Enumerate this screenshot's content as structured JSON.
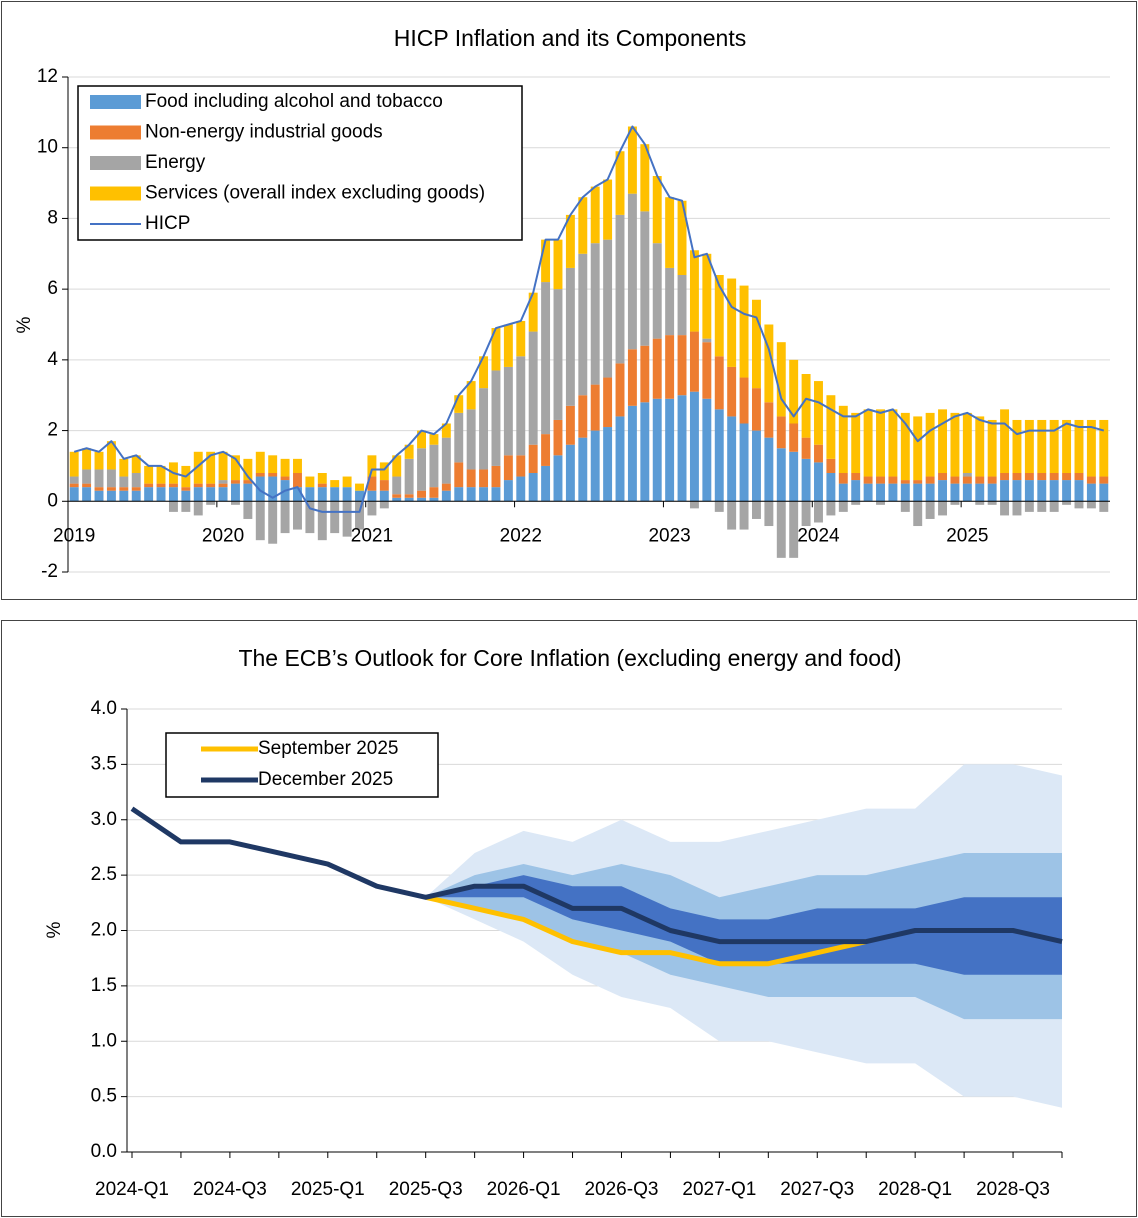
{
  "chart_data": [
    {
      "type": "bar",
      "stacked": true,
      "title": "HICP Inflation and its Components",
      "y_label": "%",
      "legend": "upper left",
      "grid": true,
      "categories": [
        "2019",
        null,
        null,
        null,
        null,
        null,
        null,
        null,
        null,
        null,
        null,
        null,
        "2020",
        null,
        null,
        null,
        null,
        null,
        null,
        null,
        null,
        null,
        null,
        null,
        "2021",
        null,
        null,
        null,
        null,
        null,
        null,
        null,
        null,
        null,
        null,
        null,
        "2022",
        null,
        null,
        null,
        null,
        null,
        null,
        null,
        null,
        null,
        null,
        null,
        "2023",
        null,
        null,
        null,
        null,
        null,
        null,
        null,
        null,
        null,
        null,
        null,
        "2024",
        null,
        null,
        null,
        null,
        null,
        null,
        null,
        null,
        null,
        null,
        null,
        "2025",
        null,
        null,
        null,
        null,
        null,
        null,
        null,
        null,
        null,
        null,
        null
      ],
      "ylim": [
        -2,
        12
      ],
      "yticks": [
        -2,
        0,
        2,
        4,
        6,
        8,
        10,
        12
      ],
      "series": [
        {
          "name": "Food including alcohol and tobacco",
          "color": "#5b9bd5",
          "values": [
            0.4,
            0.4,
            0.3,
            0.3,
            0.3,
            0.3,
            0.4,
            0.4,
            0.4,
            0.3,
            0.4,
            0.4,
            0.4,
            0.5,
            0.5,
            0.7,
            0.7,
            0.6,
            0.4,
            0.4,
            0.4,
            0.4,
            0.4,
            0.3,
            0.3,
            0.3,
            0.1,
            0.1,
            0.1,
            0.1,
            0.3,
            0.4,
            0.4,
            0.4,
            0.4,
            0.6,
            0.7,
            0.8,
            1.0,
            1.3,
            1.6,
            1.8,
            2.0,
            2.1,
            2.4,
            2.7,
            2.8,
            2.9,
            2.9,
            3.0,
            3.1,
            2.9,
            2.6,
            2.4,
            2.2,
            2.0,
            1.8,
            1.5,
            1.4,
            1.2,
            1.1,
            0.8,
            0.5,
            0.6,
            0.5,
            0.5,
            0.5,
            0.5,
            0.5,
            0.5,
            0.6,
            0.5,
            0.5,
            0.5,
            0.5,
            0.6,
            0.6,
            0.6,
            0.6,
            0.6,
            0.6,
            0.6,
            0.5,
            0.5
          ]
        },
        {
          "name": "Non-energy industrial goods",
          "color": "#ed7d31",
          "values": [
            0.1,
            0.1,
            0.1,
            0.1,
            0.1,
            0.1,
            0.1,
            0.1,
            0.1,
            0.1,
            0.1,
            0.1,
            0.1,
            0.1,
            0.1,
            0.1,
            0.1,
            0.1,
            0.4,
            0.0,
            0.1,
            0.0,
            0.0,
            0.0,
            0.4,
            0.3,
            0.1,
            0.1,
            0.2,
            0.3,
            0.2,
            0.7,
            0.5,
            0.5,
            0.6,
            0.7,
            0.6,
            0.8,
            0.9,
            1.0,
            1.1,
            1.2,
            1.3,
            1.4,
            1.5,
            1.6,
            1.6,
            1.7,
            1.8,
            1.7,
            1.7,
            1.6,
            1.5,
            1.4,
            1.3,
            1.2,
            1.0,
            0.9,
            0.8,
            0.6,
            0.5,
            0.4,
            0.3,
            0.2,
            0.2,
            0.2,
            0.2,
            0.1,
            0.1,
            0.2,
            0.2,
            0.2,
            0.2,
            0.2,
            0.2,
            0.2,
            0.2,
            0.2,
            0.2,
            0.2,
            0.2,
            0.2,
            0.2,
            0.2
          ]
        },
        {
          "name": "Energy",
          "color": "#a5a5a5",
          "values": [
            0.2,
            0.4,
            0.5,
            0.5,
            0.3,
            0.4,
            0.0,
            0.0,
            -0.3,
            -0.3,
            -0.4,
            -0.1,
            0.1,
            -0.1,
            -0.5,
            -1.1,
            -1.2,
            -0.9,
            -0.8,
            -0.9,
            -1.1,
            -0.9,
            -1.0,
            -0.8,
            -0.4,
            -0.2,
            0.5,
            1.0,
            1.2,
            1.2,
            1.3,
            1.4,
            1.7,
            2.3,
            2.7,
            2.5,
            2.8,
            3.2,
            4.3,
            3.7,
            3.9,
            4.0,
            4.0,
            3.9,
            4.2,
            4.4,
            3.8,
            2.7,
            1.9,
            1.7,
            -0.2,
            0.1,
            -0.3,
            -0.8,
            -0.8,
            -0.5,
            -0.7,
            -1.6,
            -1.6,
            -0.7,
            -0.6,
            -0.4,
            -0.3,
            -0.1,
            0.0,
            -0.1,
            0.0,
            -0.3,
            -0.7,
            -0.5,
            -0.4,
            -0.1,
            0.1,
            -0.1,
            -0.1,
            -0.4,
            -0.4,
            -0.3,
            -0.3,
            -0.3,
            -0.1,
            -0.2,
            -0.2,
            -0.3
          ]
        },
        {
          "name": "Services (overall index excluding goods)",
          "color": "#ffc000",
          "values": [
            0.7,
            0.6,
            0.5,
            0.8,
            0.5,
            0.5,
            0.5,
            0.5,
            0.6,
            0.6,
            0.9,
            0.9,
            0.8,
            0.7,
            0.6,
            0.6,
            0.5,
            0.5,
            0.4,
            0.3,
            0.3,
            0.2,
            0.3,
            0.2,
            0.6,
            0.5,
            0.6,
            0.4,
            0.5,
            0.3,
            0.4,
            0.5,
            0.8,
            0.9,
            1.2,
            1.2,
            1.0,
            1.1,
            1.2,
            1.4,
            1.5,
            1.6,
            1.6,
            1.7,
            1.8,
            1.9,
            1.9,
            1.9,
            2.0,
            2.1,
            2.3,
            2.4,
            2.3,
            2.5,
            2.6,
            2.5,
            2.2,
            2.1,
            1.8,
            1.8,
            1.8,
            1.8,
            1.9,
            1.7,
            1.9,
            1.9,
            1.9,
            1.9,
            1.8,
            1.8,
            1.8,
            1.8,
            1.7,
            1.7,
            1.6,
            1.8,
            1.5,
            1.5,
            1.5,
            1.5,
            1.5,
            1.5,
            1.6,
            1.6
          ]
        },
        {
          "name": "HICP",
          "type": "line",
          "color": "#4472c4",
          "values": [
            1.4,
            1.5,
            1.4,
            1.7,
            1.2,
            1.3,
            1.0,
            1.0,
            0.8,
            0.7,
            1.0,
            1.3,
            1.4,
            1.2,
            0.7,
            0.3,
            0.1,
            0.3,
            0.4,
            -0.2,
            -0.3,
            -0.3,
            -0.3,
            -0.3,
            0.9,
            0.9,
            1.3,
            1.6,
            2.0,
            1.9,
            2.2,
            3.0,
            3.4,
            4.1,
            4.9,
            5.0,
            5.1,
            5.9,
            7.4,
            7.4,
            8.1,
            8.6,
            8.9,
            9.1,
            9.9,
            10.6,
            10.1,
            9.2,
            8.6,
            8.5,
            6.9,
            7.0,
            6.1,
            5.5,
            5.3,
            5.2,
            4.3,
            2.9,
            2.4,
            2.9,
            2.8,
            2.6,
            2.4,
            2.4,
            2.6,
            2.5,
            2.6,
            2.2,
            1.7,
            2.0,
            2.2,
            2.4,
            2.5,
            2.3,
            2.2,
            2.2,
            1.9,
            2.0,
            2.0,
            2.0,
            2.2,
            2.1,
            2.1,
            2.0
          ]
        }
      ]
    },
    {
      "type": "line",
      "title": "The ECB’s Outlook for Core Inflation (excluding energy and food)",
      "y_label": "%",
      "legend": "upper left",
      "grid": true,
      "categories": [
        "2024-Q1",
        null,
        "2024-Q3",
        null,
        "2025-Q1",
        null,
        "2025-Q3",
        null,
        "2026-Q1",
        null,
        "2026-Q3",
        null,
        "2027-Q1",
        null,
        "2027-Q3",
        null,
        "2028-Q1",
        null,
        "2028-Q3",
        null
      ],
      "ylim": [
        0,
        4
      ],
      "yticks": [
        {
          "value": 0,
          "label": "0.0"
        },
        0.5,
        {
          "value": 1,
          "label": "1.0"
        },
        1.5,
        {
          "value": 2,
          "label": "2.0"
        },
        2.5,
        {
          "value": 3,
          "label": "3.0"
        },
        3.5,
        {
          "value": 4,
          "label": "4.0"
        }
      ],
      "bands": [
        {
          "color": "#dce8f6",
          "upper": [
            null,
            null,
            null,
            null,
            null,
            null,
            2.3,
            2.7,
            2.9,
            2.8,
            3.0,
            2.8,
            2.8,
            2.9,
            3.0,
            3.1,
            3.1,
            3.5,
            3.5,
            3.4
          ],
          "lower": [
            null,
            null,
            null,
            null,
            null,
            null,
            2.3,
            2.1,
            1.9,
            1.6,
            1.4,
            1.3,
            1.0,
            1.0,
            0.9,
            0.8,
            0.8,
            0.5,
            0.5,
            0.4
          ]
        },
        {
          "color": "#9dc3e6",
          "upper": [
            null,
            null,
            null,
            null,
            null,
            null,
            2.3,
            2.5,
            2.6,
            2.5,
            2.6,
            2.5,
            2.3,
            2.4,
            2.5,
            2.5,
            2.6,
            2.7,
            2.7,
            2.7
          ],
          "lower": [
            null,
            null,
            null,
            null,
            null,
            null,
            2.3,
            2.2,
            2.1,
            1.9,
            1.8,
            1.6,
            1.5,
            1.4,
            1.4,
            1.4,
            1.4,
            1.2,
            1.2,
            1.2
          ]
        },
        {
          "color": "#4472c4",
          "upper": [
            null,
            null,
            null,
            null,
            null,
            null,
            2.3,
            2.4,
            2.5,
            2.4,
            2.4,
            2.2,
            2.1,
            2.1,
            2.2,
            2.2,
            2.2,
            2.3,
            2.3,
            2.3
          ],
          "lower": [
            null,
            null,
            null,
            null,
            null,
            null,
            2.3,
            2.3,
            2.3,
            2.1,
            2.0,
            1.9,
            1.7,
            1.7,
            1.7,
            1.7,
            1.7,
            1.6,
            1.6,
            1.6
          ]
        }
      ],
      "series": [
        {
          "name": "September 2025",
          "color": "#ffc000",
          "values": [
            null,
            null,
            null,
            null,
            null,
            null,
            2.3,
            2.2,
            2.1,
            1.9,
            1.8,
            1.8,
            1.7,
            1.7,
            1.8,
            1.9,
            null,
            null,
            null,
            null
          ]
        },
        {
          "name": "December 2025",
          "color": "#1f3864",
          "values": [
            3.1,
            2.8,
            2.8,
            2.7,
            2.6,
            2.4,
            2.3,
            2.4,
            2.4,
            2.2,
            2.2,
            2.0,
            1.9,
            1.9,
            1.9,
            1.9,
            2.0,
            2.0,
            2.0,
            1.9
          ]
        }
      ]
    }
  ]
}
